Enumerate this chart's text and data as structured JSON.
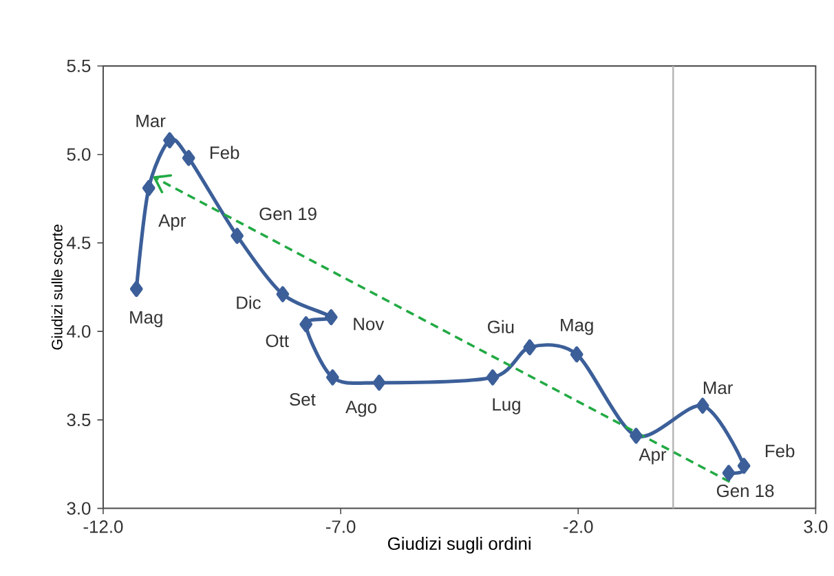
{
  "chart_data": {
    "type": "line",
    "xlabel": "Giudizi sugli ordini",
    "ylabel": "Giudizi sulle scorte",
    "xlim": [
      -12,
      3
    ],
    "ylim": [
      3,
      5.5
    ],
    "xticks": [
      {
        "value": -12,
        "label": "-12.0"
      },
      {
        "value": -7,
        "label": "-7.0"
      },
      {
        "value": -2,
        "label": "-2.0"
      },
      {
        "value": 3,
        "label": "3.0"
      }
    ],
    "yticks": [
      {
        "value": 3,
        "label": "3.0"
      },
      {
        "value": 3.5,
        "label": "3.5"
      },
      {
        "value": 4,
        "label": "4.0"
      },
      {
        "value": 4.5,
        "label": "4.5"
      },
      {
        "value": 5,
        "label": "5.0"
      },
      {
        "value": 5.5,
        "label": "5.5"
      }
    ],
    "grid": false,
    "series": [
      {
        "color": "#3c5f99",
        "marker": "diamond",
        "line_style": "solid",
        "x": [
          1.17,
          1.49,
          0.62,
          -0.78,
          -2.03,
          -3.02,
          -3.8,
          -6.19,
          -7.17,
          -7.73,
          -7.2,
          -8.22,
          -9.18,
          -10.2,
          -10.6,
          -11.04,
          -11.3
        ],
        "values": [
          3.2,
          3.24,
          3.58,
          3.41,
          3.87,
          3.91,
          3.74,
          3.71,
          3.74,
          4.04,
          4.08,
          4.21,
          4.54,
          4.98,
          5.08,
          4.81,
          4.24
        ]
      },
      {
        "color": "#22aa44",
        "marker": "none",
        "line_style": "dashed",
        "x": [
          1.19,
          -10.92
        ],
        "values": [
          3.15,
          4.87
        ]
      }
    ],
    "ref_lines": [
      {
        "axis": "x",
        "value": 0,
        "color": "#b4b4b4"
      }
    ],
    "annotations": [
      {
        "text": "Gen 18",
        "x": 1.17,
        "y": 3.2
      },
      {
        "text": "Feb",
        "x": 1.49,
        "y": 3.24
      },
      {
        "text": "Mar",
        "x": 0.62,
        "y": 3.58
      },
      {
        "text": "Apr",
        "x": -0.78,
        "y": 3.41
      },
      {
        "text": "Mag",
        "x": -2.03,
        "y": 3.87
      },
      {
        "text": "Giu",
        "x": -3.02,
        "y": 3.91
      },
      {
        "text": "Lug",
        "x": -3.8,
        "y": 3.74
      },
      {
        "text": "Ago",
        "x": -6.19,
        "y": 3.71
      },
      {
        "text": "Set",
        "x": -7.17,
        "y": 3.74
      },
      {
        "text": "Ott",
        "x": -7.73,
        "y": 4.04
      },
      {
        "text": "Nov",
        "x": -7.2,
        "y": 4.08
      },
      {
        "text": "Dic",
        "x": -8.22,
        "y": 4.21
      },
      {
        "text": "Gen 19",
        "x": -9.18,
        "y": 4.54
      },
      {
        "text": "Feb",
        "x": -10.2,
        "y": 4.98
      },
      {
        "text": "Mar",
        "x": -10.6,
        "y": 5.08
      },
      {
        "text": "Apr",
        "x": -11.04,
        "y": 4.81
      },
      {
        "text": "Mag",
        "x": -11.3,
        "y": 4.24
      }
    ]
  }
}
